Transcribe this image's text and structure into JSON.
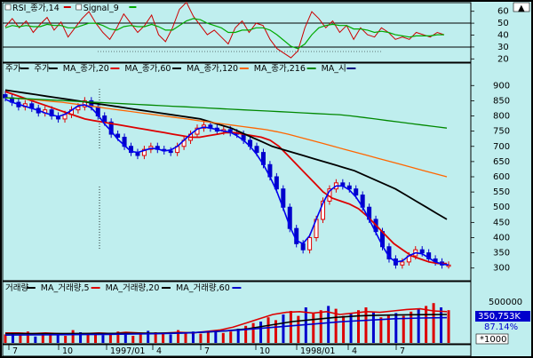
{
  "rsi_panel": {
    "legend": [
      {
        "text": "RSI_종가,14",
        "color": "#cc0000"
      },
      {
        "text": "Signal_9",
        "color": "#00aa00"
      }
    ],
    "y_ticks": [
      "60",
      "50",
      "40",
      "30",
      "20"
    ]
  },
  "price_panel": {
    "legend": [
      {
        "text": "주가",
        "color": "#000000"
      },
      {
        "text": "주가",
        "color": "#000000"
      },
      {
        "text": "MA_종가,20",
        "color": "#dd0000"
      },
      {
        "text": "MA_종가,60",
        "color": "#000000"
      },
      {
        "text": "MA_종가,120",
        "color": "#ff6600"
      },
      {
        "text": "MA_종가,216",
        "color": "#008800"
      },
      {
        "text": "MA_시",
        "color": "#000080"
      }
    ],
    "y_ticks": [
      "900",
      "850",
      "800",
      "750",
      "700",
      "650",
      "600",
      "550",
      "500",
      "450",
      "400",
      "350",
      "300"
    ]
  },
  "volume_panel": {
    "legend": [
      {
        "text": "거래량",
        "color": "#000000"
      },
      {
        "text": "MA_거래량,5",
        "color": "#dd0000"
      },
      {
        "text": "MA_거래량,20",
        "color": "#000000"
      },
      {
        "text": "MA_거래량,60",
        "color": "#0000cc"
      }
    ],
    "tick_label": "500000",
    "value_box": "350,753K",
    "percent": "87.14%",
    "unit": "*1000"
  },
  "x_axis": {
    "labels": [
      "7",
      "10",
      "1997/01",
      "4",
      "7",
      "10",
      "1998/01",
      "4",
      "7"
    ]
  },
  "colors": {
    "bg": "#bfeeee",
    "candle_up": "#dd0000",
    "candle_down": "#0000cc",
    "ma20": "#dd0000",
    "ma60": "#000000",
    "ma120": "#ff6600",
    "ma216": "#008800",
    "rsi": "#cc0000",
    "signal": "#00aa00"
  },
  "chart_data": [
    {
      "type": "line",
      "title": "RSI_종가,14",
      "ylim": [
        15,
        65
      ],
      "series": [
        {
          "name": "RSI_종가,14",
          "values": [
            45,
            52,
            44,
            50,
            40,
            47,
            53,
            42,
            49,
            36,
            44,
            52,
            58,
            48,
            40,
            34,
            44,
            56,
            48,
            40,
            46,
            55,
            38,
            32,
            44,
            60,
            66,
            54,
            46,
            38,
            42,
            36,
            30,
            44,
            50,
            40,
            48,
            46,
            34,
            26,
            22,
            18,
            24,
            44,
            58,
            52,
            44,
            50,
            40,
            46,
            34,
            44,
            38,
            36,
            44,
            40,
            34,
            36,
            34,
            40,
            38,
            36,
            40,
            38
          ]
        },
        {
          "name": "Signal_9",
          "values": [
            44,
            46,
            45,
            46,
            45,
            45,
            47,
            46,
            46,
            44,
            44,
            46,
            48,
            48,
            46,
            43,
            42,
            45,
            46,
            45,
            45,
            47,
            45,
            42,
            42,
            46,
            50,
            52,
            51,
            48,
            46,
            44,
            40,
            40,
            42,
            42,
            44,
            44,
            42,
            38,
            33,
            28,
            26,
            30,
            38,
            44,
            46,
            47,
            46,
            46,
            43,
            43,
            42,
            40,
            41,
            40,
            38,
            37,
            36,
            37,
            37,
            37,
            38,
            38
          ]
        }
      ],
      "hlines": [
        50,
        30
      ]
    },
    {
      "type": "line",
      "title": "주가",
      "ylim": [
        270,
        930
      ],
      "candles_close": [
        860,
        845,
        830,
        840,
        825,
        810,
        820,
        800,
        790,
        805,
        820,
        830,
        850,
        830,
        800,
        780,
        740,
        730,
        700,
        680,
        670,
        690,
        700,
        690,
        685,
        680,
        700,
        720,
        740,
        760,
        770,
        760,
        750,
        755,
        745,
        740,
        720,
        700,
        680,
        640,
        600,
        560,
        500,
        430,
        380,
        360,
        400,
        460,
        520,
        560,
        580,
        570,
        560,
        540,
        500,
        460,
        420,
        370,
        330,
        310,
        320,
        340,
        360,
        350,
        330,
        320,
        310,
        310
      ],
      "series": [
        {
          "name": "MA_종가,20",
          "values": [
            880,
            870,
            860,
            850,
            840,
            830,
            820,
            810,
            800,
            790,
            785,
            780,
            775,
            770,
            765,
            760,
            755,
            750,
            745,
            740,
            735,
            730,
            730,
            735,
            740,
            745,
            745,
            740,
            735,
            730,
            720,
            700,
            670,
            640,
            610,
            580,
            550,
            530,
            520,
            510,
            495,
            470,
            440,
            410,
            380,
            360,
            340,
            330,
            320,
            315,
            315
          ]
        },
        {
          "name": "MA_종가,60",
          "values": [
            885,
            880,
            875,
            870,
            865,
            860,
            855,
            850,
            845,
            840,
            835,
            830,
            825,
            820,
            815,
            810,
            805,
            800,
            795,
            790,
            780,
            770,
            760,
            745,
            730,
            715,
            700,
            690,
            680,
            670,
            660,
            650,
            640,
            630,
            620,
            605,
            590,
            575,
            560,
            540,
            520,
            500,
            480,
            460
          ]
        },
        {
          "name": "MA_종가,120",
          "values": [
            860,
            858,
            855,
            852,
            848,
            845,
            840,
            835,
            830,
            825,
            820,
            815,
            810,
            805,
            800,
            795,
            790,
            785,
            780,
            775,
            770,
            765,
            760,
            755,
            748,
            740,
            730,
            720,
            710,
            700,
            690,
            680,
            670,
            660,
            650,
            640,
            630,
            620,
            610,
            600
          ]
        },
        {
          "name": "MA_종가,216",
          "values": [
            860,
            858,
            856,
            854,
            852,
            850,
            848,
            846,
            844,
            842,
            840,
            838,
            836,
            834,
            832,
            830,
            828,
            826,
            824,
            822,
            820,
            818,
            816,
            814,
            812,
            810,
            808,
            806,
            804,
            800,
            795,
            790,
            785,
            780,
            775,
            770,
            765,
            760
          ]
        }
      ]
    },
    {
      "type": "bar",
      "title": "거래량",
      "ylim": [
        0,
        700000
      ],
      "values": [
        120000,
        150000,
        110000,
        160000,
        90000,
        130000,
        140000,
        120000,
        100000,
        180000,
        150000,
        120000,
        140000,
        110000,
        130000,
        160000,
        120000,
        100000,
        140000,
        170000,
        150000,
        130000,
        120000,
        180000,
        140000,
        160000,
        130000,
        150000,
        170000,
        140000,
        160000,
        200000,
        240000,
        280000,
        300000,
        360000,
        320000,
        400000,
        450000,
        380000,
        500000,
        420000,
        460000,
        520000,
        480000,
        380000,
        420000,
        460000,
        500000,
        440000,
        360000,
        400000,
        420000,
        380000,
        440000,
        480000,
        520000,
        560000,
        500000,
        460000
      ],
      "series": [
        {
          "name": "MA_거래량,5",
          "values": [
            140000,
            140000,
            130000,
            140000,
            130000,
            120000,
            130000,
            140000,
            130000,
            150000,
            140000,
            130000,
            140000,
            150000,
            140000,
            160000,
            180000,
            220000,
            280000,
            340000,
            400000,
            430000,
            440000,
            420000,
            440000,
            400000,
            420000,
            440000,
            430000,
            450000,
            470000,
            480000,
            450000,
            440000
          ]
        },
        {
          "name": "MA_거래량,20",
          "values": [
            130000,
            130000,
            130000,
            132000,
            133000,
            134000,
            135000,
            138000,
            140000,
            150000,
            170000,
            200000,
            250000,
            300000,
            330000,
            360000,
            380000,
            390000,
            395000,
            398000,
            400000
          ]
        },
        {
          "name": "MA_거래량,60",
          "values": [
            110000,
            112000,
            115000,
            118000,
            120000,
            125000,
            130000,
            140000,
            160000,
            180000,
            210000,
            240000,
            270000,
            300000,
            320000,
            340000,
            350000,
            355000
          ]
        }
      ]
    }
  ]
}
